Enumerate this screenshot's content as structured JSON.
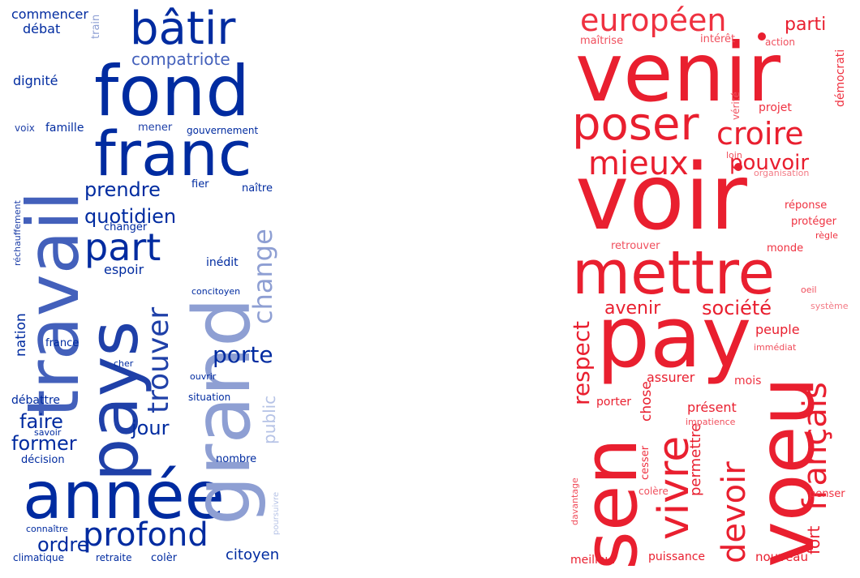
{
  "left_cloud": {
    "accent_color": "#002ba0",
    "words": [
      "année",
      "fond",
      "franc",
      "grand",
      "pays",
      "travail",
      "bâtir",
      "profond",
      "part",
      "compatriote",
      "trouver",
      "change",
      "prendre",
      "quotidien",
      "porte",
      "ordre",
      "jour",
      "faire",
      "former",
      "citoyen",
      "public",
      "commencer",
      "débat",
      "dignité",
      "train",
      "voix",
      "famille",
      "mener",
      "gouvernement",
      "fier",
      "naître",
      "changer",
      "réchauffement",
      "espoir",
      "inédit",
      "concitoyen",
      "nation",
      "france",
      "cher",
      "ouvrir",
      "débattre",
      "situation",
      "savoir",
      "décision",
      "nombre",
      "connaître",
      "poursuivre",
      "climatique",
      "retraite",
      "colèr"
    ]
  },
  "right_cloud": {
    "accent_color": "#e91f2f",
    "words": [
      "voir",
      "venir",
      "pay",
      "mettre",
      "sen",
      "voeu",
      "poser",
      "européen",
      "croire",
      "mieux",
      "pouvoir",
      "vivre",
      "devoir",
      "français",
      "respect",
      "société",
      "avenir",
      "parti",
      "maîtrise",
      "intérêt",
      "action",
      "démocrati",
      "vérité",
      "projet",
      "loin",
      "organisation",
      "réponse",
      "protéger",
      "règle",
      "retrouver",
      "monde",
      "oeil",
      "système",
      "peuple",
      "immédiat",
      "assurer",
      "mois",
      "chose",
      "présent",
      "permettre",
      "porter",
      "impatience",
      "cesser",
      "fort",
      "davantage",
      "colère",
      "penser",
      "meilleur",
      "puissance",
      "nouveau"
    ]
  }
}
